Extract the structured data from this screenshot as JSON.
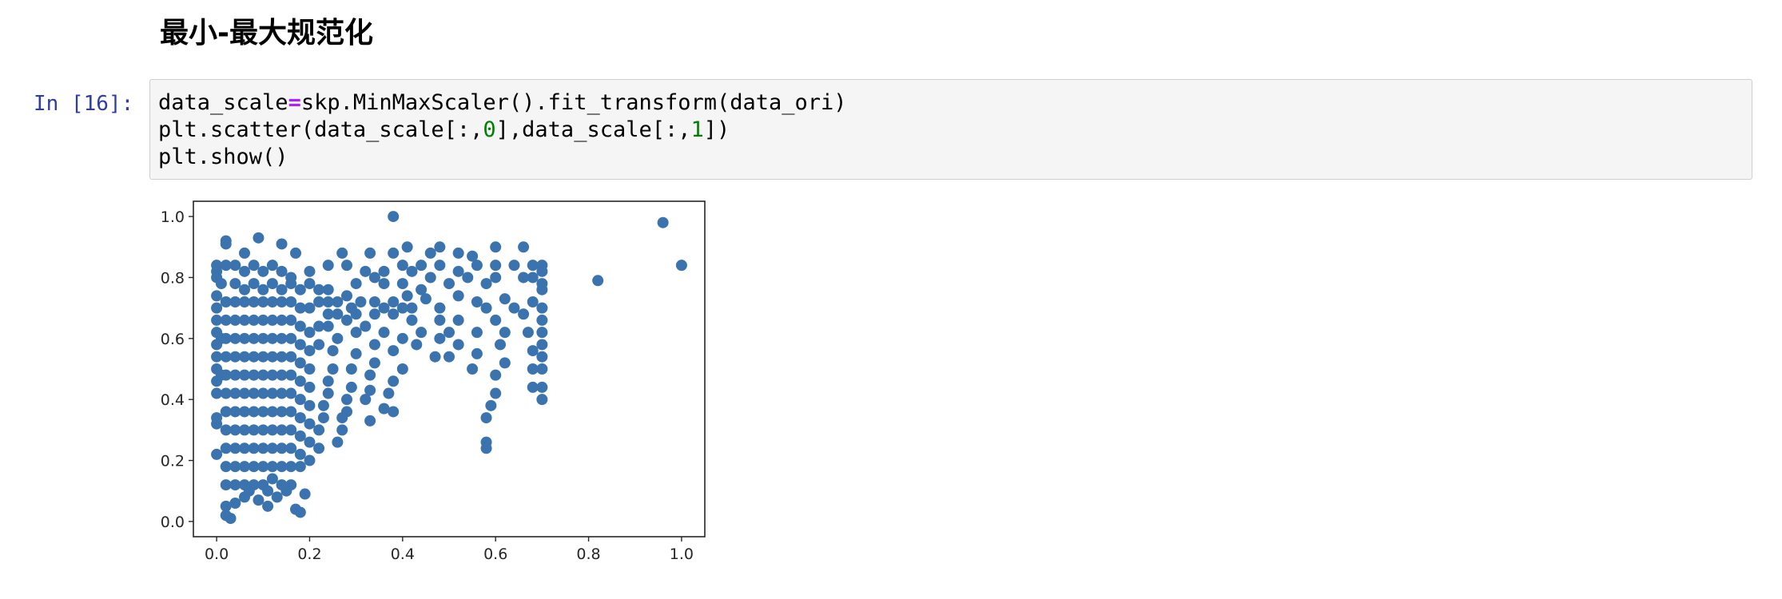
{
  "markdown": {
    "heading": "最小-最大规范化"
  },
  "cell": {
    "prompt": "In [16]:",
    "code_lines": [
      [
        {
          "t": "data_scale"
        },
        {
          "t": "=",
          "cls": "op"
        },
        {
          "t": "skp.MinMaxScaler().fit_transform(data_ori)"
        }
      ],
      [
        {
          "t": "plt.scatter(data_scale[:,"
        },
        {
          "t": "0",
          "cls": "num"
        },
        {
          "t": "],data_scale[:,"
        },
        {
          "t": "1",
          "cls": "num"
        },
        {
          "t": "])"
        }
      ],
      [
        {
          "t": "plt.show()"
        }
      ]
    ]
  },
  "colors": {
    "marker": "#3a73ad",
    "prompt": "#303f9f",
    "cell_bg": "#f5f5f5",
    "cell_border": "#cfcfcf",
    "keyword_op": "#aa22ff",
    "number": "#008000"
  },
  "chart_data": {
    "type": "scatter",
    "title": "",
    "xlabel": "",
    "ylabel": "",
    "xlim": [
      -0.05,
      1.05
    ],
    "ylim": [
      -0.05,
      1.05
    ],
    "xticks": [
      "0.0",
      "0.2",
      "0.4",
      "0.6",
      "0.8",
      "1.0"
    ],
    "yticks": [
      "0.0",
      "0.2",
      "0.4",
      "0.6",
      "0.8",
      "1.0"
    ],
    "grid": false,
    "series": [
      {
        "points": [
          [
            0.38,
            1.0
          ],
          [
            0.96,
            0.98
          ],
          [
            1.0,
            0.84
          ],
          [
            0.82,
            0.79
          ],
          [
            0.66,
            0.9
          ],
          [
            0.6,
            0.9
          ],
          [
            0.52,
            0.88
          ],
          [
            0.48,
            0.9
          ],
          [
            0.41,
            0.9
          ],
          [
            0.46,
            0.88
          ],
          [
            0.55,
            0.87
          ],
          [
            0.09,
            0.93
          ],
          [
            0.02,
            0.92
          ],
          [
            0.02,
            0.91
          ],
          [
            0.14,
            0.91
          ],
          [
            0.17,
            0.88
          ],
          [
            0.38,
            0.88
          ],
          [
            0.33,
            0.88
          ],
          [
            0.27,
            0.88
          ],
          [
            0.06,
            0.88
          ],
          [
            0.0,
            0.84
          ],
          [
            0.0,
            0.82
          ],
          [
            0.0,
            0.8
          ],
          [
            0.01,
            0.78
          ],
          [
            0.02,
            0.84
          ],
          [
            0.04,
            0.84
          ],
          [
            0.06,
            0.82
          ],
          [
            0.08,
            0.84
          ],
          [
            0.1,
            0.82
          ],
          [
            0.12,
            0.84
          ],
          [
            0.14,
            0.82
          ],
          [
            0.16,
            0.8
          ],
          [
            0.2,
            0.82
          ],
          [
            0.24,
            0.84
          ],
          [
            0.28,
            0.84
          ],
          [
            0.32,
            0.82
          ],
          [
            0.36,
            0.82
          ],
          [
            0.4,
            0.84
          ],
          [
            0.42,
            0.82
          ],
          [
            0.44,
            0.84
          ],
          [
            0.48,
            0.84
          ],
          [
            0.52,
            0.82
          ],
          [
            0.56,
            0.84
          ],
          [
            0.6,
            0.84
          ],
          [
            0.64,
            0.84
          ],
          [
            0.68,
            0.84
          ],
          [
            0.7,
            0.84
          ],
          [
            0.7,
            0.82
          ],
          [
            0.68,
            0.8
          ],
          [
            0.7,
            0.78
          ],
          [
            0.7,
            0.76
          ],
          [
            0.66,
            0.8
          ],
          [
            0.6,
            0.8
          ],
          [
            0.58,
            0.78
          ],
          [
            0.54,
            0.8
          ],
          [
            0.5,
            0.78
          ],
          [
            0.46,
            0.8
          ],
          [
            0.44,
            0.76
          ],
          [
            0.4,
            0.78
          ],
          [
            0.36,
            0.78
          ],
          [
            0.34,
            0.8
          ],
          [
            0.3,
            0.78
          ],
          [
            0.0,
            0.74
          ],
          [
            0.0,
            0.7
          ],
          [
            0.0,
            0.66
          ],
          [
            0.0,
            0.62
          ],
          [
            0.0,
            0.58
          ],
          [
            0.0,
            0.54
          ],
          [
            0.0,
            0.5
          ],
          [
            0.0,
            0.46
          ],
          [
            0.0,
            0.42
          ],
          [
            0.0,
            0.34
          ],
          [
            0.0,
            0.32
          ],
          [
            0.0,
            0.22
          ],
          [
            0.01,
            0.6
          ],
          [
            0.01,
            0.48
          ],
          [
            0.45,
            0.73
          ],
          [
            0.48,
            0.7
          ],
          [
            0.52,
            0.74
          ],
          [
            0.56,
            0.72
          ],
          [
            0.58,
            0.7
          ],
          [
            0.62,
            0.73
          ],
          [
            0.64,
            0.7
          ],
          [
            0.68,
            0.72
          ],
          [
            0.7,
            0.7
          ],
          [
            0.7,
            0.66
          ],
          [
            0.7,
            0.62
          ],
          [
            0.7,
            0.58
          ],
          [
            0.7,
            0.54
          ],
          [
            0.7,
            0.5
          ],
          [
            0.7,
            0.44
          ],
          [
            0.7,
            0.4
          ],
          [
            0.68,
            0.44
          ],
          [
            0.68,
            0.5
          ],
          [
            0.68,
            0.56
          ],
          [
            0.67,
            0.62
          ],
          [
            0.66,
            0.68
          ],
          [
            0.6,
            0.66
          ],
          [
            0.62,
            0.62
          ],
          [
            0.61,
            0.58
          ],
          [
            0.62,
            0.52
          ],
          [
            0.6,
            0.48
          ],
          [
            0.6,
            0.42
          ],
          [
            0.59,
            0.38
          ],
          [
            0.58,
            0.34
          ],
          [
            0.58,
            0.26
          ],
          [
            0.58,
            0.24
          ],
          [
            0.56,
            0.62
          ],
          [
            0.56,
            0.55
          ],
          [
            0.55,
            0.5
          ],
          [
            0.52,
            0.66
          ],
          [
            0.5,
            0.62
          ],
          [
            0.52,
            0.58
          ],
          [
            0.5,
            0.54
          ],
          [
            0.48,
            0.6
          ],
          [
            0.47,
            0.54
          ],
          [
            0.48,
            0.66
          ],
          [
            0.44,
            0.62
          ],
          [
            0.43,
            0.58
          ],
          [
            0.42,
            0.66
          ],
          [
            0.42,
            0.7
          ],
          [
            0.4,
            0.6
          ],
          [
            0.38,
            0.56
          ],
          [
            0.4,
            0.5
          ],
          [
            0.38,
            0.46
          ],
          [
            0.37,
            0.42
          ],
          [
            0.38,
            0.36
          ],
          [
            0.36,
            0.37
          ],
          [
            0.36,
            0.62
          ],
          [
            0.34,
            0.68
          ],
          [
            0.34,
            0.58
          ],
          [
            0.34,
            0.52
          ],
          [
            0.33,
            0.48
          ],
          [
            0.33,
            0.43
          ],
          [
            0.32,
            0.4
          ],
          [
            0.33,
            0.33
          ],
          [
            0.3,
            0.68
          ],
          [
            0.3,
            0.62
          ],
          [
            0.3,
            0.55
          ],
          [
            0.29,
            0.5
          ],
          [
            0.29,
            0.44
          ],
          [
            0.28,
            0.4
          ],
          [
            0.28,
            0.36
          ],
          [
            0.27,
            0.34
          ],
          [
            0.27,
            0.3
          ],
          [
            0.26,
            0.26
          ],
          [
            0.26,
            0.72
          ],
          [
            0.28,
            0.74
          ],
          [
            0.24,
            0.76
          ],
          [
            0.22,
            0.76
          ],
          [
            0.2,
            0.78
          ],
          [
            0.18,
            0.76
          ],
          [
            0.16,
            0.78
          ],
          [
            0.14,
            0.76
          ],
          [
            0.12,
            0.78
          ],
          [
            0.1,
            0.76
          ],
          [
            0.08,
            0.78
          ],
          [
            0.06,
            0.76
          ],
          [
            0.04,
            0.78
          ],
          [
            0.26,
            0.6
          ],
          [
            0.25,
            0.56
          ],
          [
            0.25,
            0.5
          ],
          [
            0.24,
            0.46
          ],
          [
            0.24,
            0.42
          ],
          [
            0.23,
            0.38
          ],
          [
            0.23,
            0.34
          ],
          [
            0.22,
            0.3
          ],
          [
            0.22,
            0.24
          ],
          [
            0.24,
            0.64
          ],
          [
            0.24,
            0.68
          ],
          [
            0.22,
            0.64
          ],
          [
            0.22,
            0.58
          ],
          [
            0.2,
            0.7
          ],
          [
            0.2,
            0.62
          ],
          [
            0.2,
            0.56
          ],
          [
            0.2,
            0.5
          ],
          [
            0.2,
            0.44
          ],
          [
            0.2,
            0.38
          ],
          [
            0.2,
            0.32
          ],
          [
            0.2,
            0.26
          ],
          [
            0.2,
            0.2
          ],
          [
            0.18,
            0.7
          ],
          [
            0.18,
            0.64
          ],
          [
            0.18,
            0.58
          ],
          [
            0.18,
            0.52
          ],
          [
            0.18,
            0.46
          ],
          [
            0.18,
            0.4
          ],
          [
            0.18,
            0.34
          ],
          [
            0.18,
            0.28
          ],
          [
            0.18,
            0.22
          ],
          [
            0.18,
            0.18
          ],
          [
            0.16,
            0.72
          ],
          [
            0.16,
            0.66
          ],
          [
            0.16,
            0.6
          ],
          [
            0.16,
            0.54
          ],
          [
            0.16,
            0.48
          ],
          [
            0.16,
            0.42
          ],
          [
            0.16,
            0.36
          ],
          [
            0.16,
            0.3
          ],
          [
            0.16,
            0.24
          ],
          [
            0.16,
            0.18
          ],
          [
            0.16,
            0.12
          ],
          [
            0.14,
            0.72
          ],
          [
            0.14,
            0.66
          ],
          [
            0.14,
            0.6
          ],
          [
            0.14,
            0.54
          ],
          [
            0.14,
            0.48
          ],
          [
            0.14,
            0.42
          ],
          [
            0.14,
            0.36
          ],
          [
            0.14,
            0.3
          ],
          [
            0.14,
            0.24
          ],
          [
            0.14,
            0.18
          ],
          [
            0.14,
            0.12
          ],
          [
            0.12,
            0.72
          ],
          [
            0.12,
            0.66
          ],
          [
            0.12,
            0.6
          ],
          [
            0.12,
            0.54
          ],
          [
            0.12,
            0.48
          ],
          [
            0.12,
            0.42
          ],
          [
            0.12,
            0.36
          ],
          [
            0.12,
            0.3
          ],
          [
            0.12,
            0.24
          ],
          [
            0.12,
            0.18
          ],
          [
            0.12,
            0.14
          ],
          [
            0.1,
            0.72
          ],
          [
            0.1,
            0.66
          ],
          [
            0.1,
            0.6
          ],
          [
            0.1,
            0.54
          ],
          [
            0.1,
            0.48
          ],
          [
            0.1,
            0.42
          ],
          [
            0.1,
            0.36
          ],
          [
            0.1,
            0.3
          ],
          [
            0.1,
            0.24
          ],
          [
            0.1,
            0.18
          ],
          [
            0.1,
            0.12
          ],
          [
            0.09,
            0.07
          ],
          [
            0.11,
            0.05
          ],
          [
            0.08,
            0.72
          ],
          [
            0.08,
            0.66
          ],
          [
            0.08,
            0.6
          ],
          [
            0.08,
            0.54
          ],
          [
            0.08,
            0.48
          ],
          [
            0.08,
            0.42
          ],
          [
            0.08,
            0.36
          ],
          [
            0.08,
            0.3
          ],
          [
            0.08,
            0.24
          ],
          [
            0.08,
            0.18
          ],
          [
            0.08,
            0.12
          ],
          [
            0.06,
            0.72
          ],
          [
            0.06,
            0.66
          ],
          [
            0.06,
            0.6
          ],
          [
            0.06,
            0.54
          ],
          [
            0.06,
            0.48
          ],
          [
            0.06,
            0.42
          ],
          [
            0.06,
            0.36
          ],
          [
            0.06,
            0.3
          ],
          [
            0.06,
            0.24
          ],
          [
            0.06,
            0.18
          ],
          [
            0.06,
            0.12
          ],
          [
            0.06,
            0.08
          ],
          [
            0.04,
            0.72
          ],
          [
            0.04,
            0.66
          ],
          [
            0.04,
            0.6
          ],
          [
            0.04,
            0.54
          ],
          [
            0.04,
            0.48
          ],
          [
            0.04,
            0.42
          ],
          [
            0.04,
            0.36
          ],
          [
            0.04,
            0.3
          ],
          [
            0.04,
            0.24
          ],
          [
            0.04,
            0.18
          ],
          [
            0.04,
            0.12
          ],
          [
            0.04,
            0.06
          ],
          [
            0.02,
            0.72
          ],
          [
            0.02,
            0.66
          ],
          [
            0.02,
            0.6
          ],
          [
            0.02,
            0.54
          ],
          [
            0.02,
            0.48
          ],
          [
            0.02,
            0.42
          ],
          [
            0.02,
            0.36
          ],
          [
            0.02,
            0.3
          ],
          [
            0.02,
            0.24
          ],
          [
            0.02,
            0.18
          ],
          [
            0.02,
            0.12
          ],
          [
            0.02,
            0.05
          ],
          [
            0.02,
            0.02
          ],
          [
            0.03,
            0.01
          ],
          [
            0.17,
            0.04
          ],
          [
            0.18,
            0.03
          ],
          [
            0.13,
            0.08
          ],
          [
            0.15,
            0.1
          ],
          [
            0.19,
            0.09
          ],
          [
            0.11,
            0.1
          ],
          [
            0.07,
            0.1
          ],
          [
            0.22,
            0.72
          ],
          [
            0.24,
            0.72
          ],
          [
            0.26,
            0.68
          ],
          [
            0.28,
            0.66
          ],
          [
            0.29,
            0.7
          ],
          [
            0.31,
            0.72
          ],
          [
            0.32,
            0.64
          ],
          [
            0.34,
            0.72
          ],
          [
            0.36,
            0.7
          ],
          [
            0.38,
            0.72
          ],
          [
            0.38,
            0.68
          ],
          [
            0.4,
            0.7
          ],
          [
            0.41,
            0.74
          ]
        ]
      }
    ]
  }
}
